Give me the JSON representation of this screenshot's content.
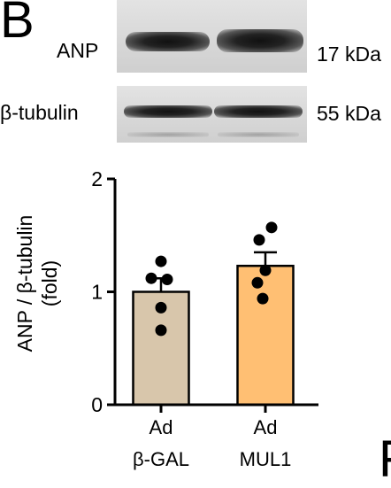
{
  "panel_letter": "B",
  "next_panel_letter": "F",
  "blots": [
    {
      "protein": "ANP",
      "size": "17 kDa"
    },
    {
      "protein": "β-tubulin",
      "size": "55 kDa"
    }
  ],
  "chart_data": {
    "type": "bar",
    "ylabel_line1": "ANP / β-tubulin",
    "ylabel_line2": "(fold)",
    "ylim": [
      0,
      2
    ],
    "yticks": [
      "0",
      "1",
      "2"
    ],
    "categories": [
      {
        "line1": "Ad",
        "line2": "β-GAL"
      },
      {
        "line1": "Ad",
        "line2": "MUL1"
      }
    ],
    "values": [
      1.0,
      1.23
    ],
    "errors": [
      0.12,
      0.12
    ],
    "points": [
      [
        1.27,
        1.12,
        1.11,
        0.86,
        0.66
      ],
      [
        1.57,
        1.46,
        1.19,
        1.08,
        0.94
      ]
    ],
    "colors": [
      "#d8c6ab",
      "#ffbf73"
    ]
  }
}
